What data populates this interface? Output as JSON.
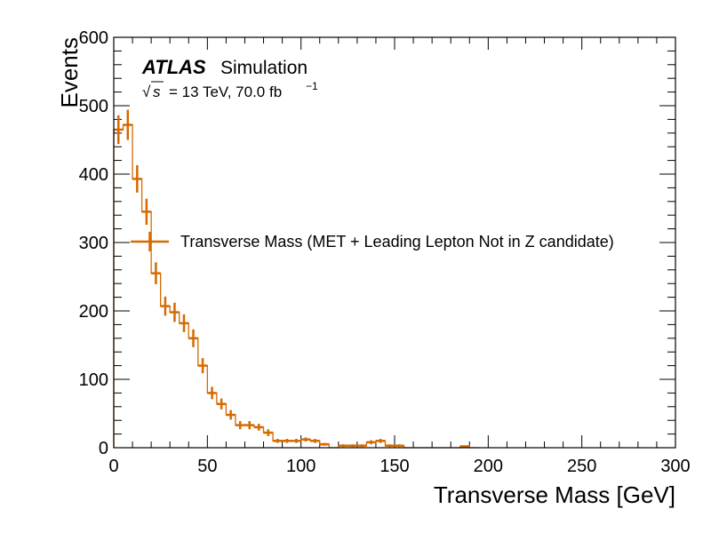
{
  "chart_data": {
    "type": "histogram",
    "title": "",
    "branding": {
      "experiment": "ATLAS",
      "status": "Simulation",
      "energy_lumi": "= 13 TeV, 70.0 fb",
      "lumi_exponent": "−1",
      "sqrt_symbol": "√",
      "s_symbol": "s"
    },
    "xlabel": "Transverse Mass [GeV]",
    "ylabel": "Events",
    "xlim": [
      0,
      300
    ],
    "ylim": [
      0,
      600
    ],
    "x_ticks": [
      0,
      50,
      100,
      150,
      200,
      250,
      300
    ],
    "y_ticks": [
      0,
      100,
      200,
      300,
      400,
      500,
      600
    ],
    "bin_width": 5,
    "series": [
      {
        "name": "Transverse Mass (MET + Leading Lepton Not in Z candidate)",
        "color": "#d46a00",
        "bins": [
          {
            "x": 2.5,
            "y": 465,
            "err": 21
          },
          {
            "x": 7.5,
            "y": 472,
            "err": 22
          },
          {
            "x": 12.5,
            "y": 393,
            "err": 20
          },
          {
            "x": 17.5,
            "y": 345,
            "err": 19
          },
          {
            "x": 22.5,
            "y": 255,
            "err": 16
          },
          {
            "x": 27.5,
            "y": 207,
            "err": 14
          },
          {
            "x": 32.5,
            "y": 198,
            "err": 14
          },
          {
            "x": 37.5,
            "y": 182,
            "err": 13
          },
          {
            "x": 42.5,
            "y": 160,
            "err": 13
          },
          {
            "x": 47.5,
            "y": 120,
            "err": 11
          },
          {
            "x": 52.5,
            "y": 80,
            "err": 9
          },
          {
            "x": 57.5,
            "y": 64,
            "err": 8
          },
          {
            "x": 62.5,
            "y": 48,
            "err": 7
          },
          {
            "x": 67.5,
            "y": 33,
            "err": 6
          },
          {
            "x": 72.5,
            "y": 33,
            "err": 6
          },
          {
            "x": 77.5,
            "y": 30,
            "err": 5
          },
          {
            "x": 82.5,
            "y": 22,
            "err": 5
          },
          {
            "x": 87.5,
            "y": 10,
            "err": 3
          },
          {
            "x": 92.5,
            "y": 10,
            "err": 3
          },
          {
            "x": 97.5,
            "y": 10,
            "err": 3
          },
          {
            "x": 102.5,
            "y": 12,
            "err": 3
          },
          {
            "x": 107.5,
            "y": 10,
            "err": 3
          },
          {
            "x": 112.5,
            "y": 5,
            "err": 2
          },
          {
            "x": 117.5,
            "y": 0,
            "err": 0
          },
          {
            "x": 122.5,
            "y": 3,
            "err": 2
          },
          {
            "x": 127.5,
            "y": 3,
            "err": 2
          },
          {
            "x": 132.5,
            "y": 3,
            "err": 2
          },
          {
            "x": 137.5,
            "y": 8,
            "err": 3
          },
          {
            "x": 142.5,
            "y": 10,
            "err": 3
          },
          {
            "x": 147.5,
            "y": 3,
            "err": 2
          },
          {
            "x": 152.5,
            "y": 3,
            "err": 2
          },
          {
            "x": 157.5,
            "y": 0,
            "err": 0
          },
          {
            "x": 162.5,
            "y": 0,
            "err": 0
          },
          {
            "x": 167.5,
            "y": 0,
            "err": 0
          },
          {
            "x": 172.5,
            "y": 0,
            "err": 0
          },
          {
            "x": 177.5,
            "y": 0,
            "err": 0
          },
          {
            "x": 182.5,
            "y": 0,
            "err": 0
          },
          {
            "x": 187.5,
            "y": 2,
            "err": 1
          },
          {
            "x": 192.5,
            "y": 0,
            "err": 0
          }
        ]
      }
    ],
    "legend_placement": "center-right"
  }
}
